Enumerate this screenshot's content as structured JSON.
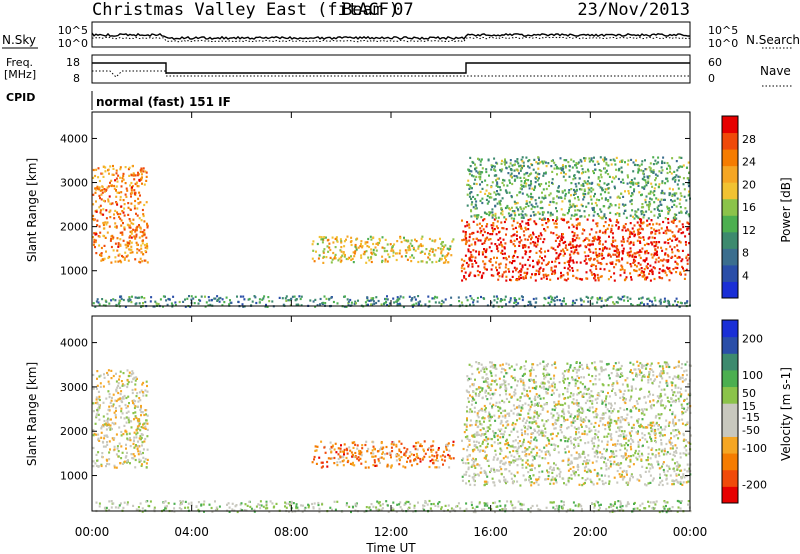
{
  "header": {
    "station": "Christmas Valley East (fitACF)",
    "beam": "Beam 07",
    "date": "23/Nov/2013"
  },
  "mode_label": "normal (fast) 151 IF",
  "panels": {
    "nsky": {
      "left_label": "N.Sky",
      "right_label": "N.Search",
      "left_ticks": [
        "10^5",
        "10^0"
      ],
      "right_ticks": [
        "10^5",
        "10^0"
      ]
    },
    "freq": {
      "left_label_1": "Freq.",
      "left_label_2": "[MHz]",
      "right_label": "Nave",
      "left_ticks": [
        "18",
        "8"
      ],
      "right_ticks": [
        "60",
        "0"
      ]
    },
    "cpid": {
      "label": "CPID"
    }
  },
  "colors": {
    "power_scale": [
      "#1a2fd6",
      "#2a4ea8",
      "#3b6e8e",
      "#3d8a6e",
      "#4caf50",
      "#8bc34a",
      "#f1c232",
      "#f5a623",
      "#f57c00",
      "#f04a0a",
      "#e60000"
    ],
    "velocity_scale": [
      "#e60000",
      "#f04a0a",
      "#f57c00",
      "#f5a623",
      "#c8c8be",
      "#c8c8be",
      "#8bc34a",
      "#4caf50",
      "#3d8a6e",
      "#2a4ea8",
      "#1a2fd6"
    ]
  },
  "chart_data": [
    {
      "type": "heatmap",
      "name": "power",
      "ylabel": "Slant Range [km]",
      "yticks": [
        1000,
        2000,
        3000,
        4000
      ],
      "ylim": [
        200,
        4600
      ],
      "xticks": [
        "00:00",
        "04:00",
        "08:00",
        "12:00",
        "16:00",
        "20:00",
        "00:00"
      ],
      "xlim_hours": [
        0,
        24
      ],
      "colorbar": {
        "label": "Power [dB]",
        "ticks": [
          4,
          8,
          12,
          16,
          20,
          24,
          28
        ],
        "range": [
          0,
          32
        ]
      },
      "regions": [
        {
          "t0": 0.0,
          "t1": 2.2,
          "r0": 1200,
          "r1": 3400,
          "level": 0.75
        },
        {
          "t0": 8.8,
          "t1": 14.5,
          "r0": 1200,
          "r1": 1800,
          "level": 0.6
        },
        {
          "t0": 14.8,
          "t1": 24.0,
          "r0": 800,
          "r1": 2200,
          "level": 0.9
        },
        {
          "t0": 15.0,
          "t1": 24.0,
          "r0": 2200,
          "r1": 3600,
          "level": 0.4
        },
        {
          "t0": 0.0,
          "t1": 24.0,
          "r0": 200,
          "r1": 450,
          "level": 0.3
        }
      ]
    },
    {
      "type": "heatmap",
      "name": "velocity",
      "ylabel": "Slant Range [km]",
      "yticks": [
        1000,
        2000,
        3000,
        4000
      ],
      "ylim": [
        200,
        4600
      ],
      "xticks": [
        "00:00",
        "04:00",
        "08:00",
        "12:00",
        "16:00",
        "20:00",
        "00:00"
      ],
      "xlim_hours": [
        0,
        24
      ],
      "xlabel": "Time UT",
      "colorbar": {
        "label": "Velocity [m s-1]",
        "ticks": [
          200,
          100,
          50,
          15,
          -15,
          -50,
          -100,
          -200
        ],
        "range": [
          -250,
          250
        ]
      },
      "regions": [
        {
          "t0": 0.0,
          "t1": 2.2,
          "r0": 1200,
          "r1": 3400,
          "level": 0.45
        },
        {
          "t0": 8.8,
          "t1": 14.5,
          "r0": 1200,
          "r1": 1800,
          "level": 0.25
        },
        {
          "t0": 14.8,
          "t1": 24.0,
          "r0": 800,
          "r1": 2200,
          "level": 0.48
        },
        {
          "t0": 15.0,
          "t1": 24.0,
          "r0": 2200,
          "r1": 3600,
          "level": 0.5
        },
        {
          "t0": 0.0,
          "t1": 24.0,
          "r0": 200,
          "r1": 450,
          "level": 0.55
        }
      ]
    }
  ]
}
